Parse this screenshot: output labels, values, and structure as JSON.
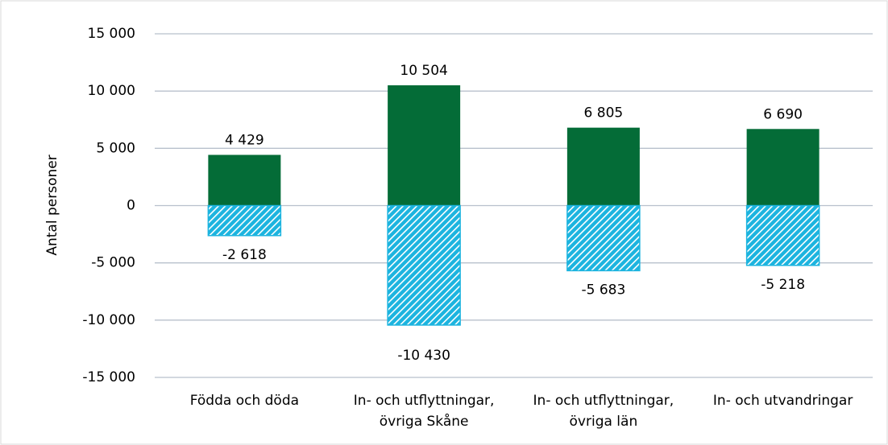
{
  "chart_data": {
    "type": "bar",
    "y_label": "Antal personer",
    "categories": [
      [
        "Födda och döda"
      ],
      [
        "In- och utflyttningar,",
        "övriga Skåne"
      ],
      [
        "In- och utflyttningar,",
        "övriga län"
      ],
      [
        "In- och utvandringar"
      ]
    ],
    "series": [
      {
        "color": "#046c37",
        "values": [
          4429,
          10504,
          6805,
          6690
        ],
        "value_labels": [
          "4 429",
          "10 504",
          "6 805",
          "6 690"
        ]
      },
      {
        "color": "#1cb4df",
        "pattern": "diagonal",
        "values": [
          -2618,
          -10430,
          -5683,
          -5218
        ],
        "value_labels": [
          "-2 618",
          "-10 430",
          "-5 683",
          "-5 218"
        ]
      }
    ],
    "ylim": [
      -15000,
      15000
    ],
    "yticks": [
      {
        "value": -15000,
        "label": "-15 000"
      },
      {
        "value": -10000,
        "label": "-10 000"
      },
      {
        "value": -5000,
        "label": "-5 000"
      },
      0,
      {
        "value": 5000,
        "label": "5 000"
      },
      {
        "value": 10000,
        "label": "10 000"
      },
      {
        "value": 15000,
        "label": "15 000"
      }
    ],
    "grid": true
  }
}
